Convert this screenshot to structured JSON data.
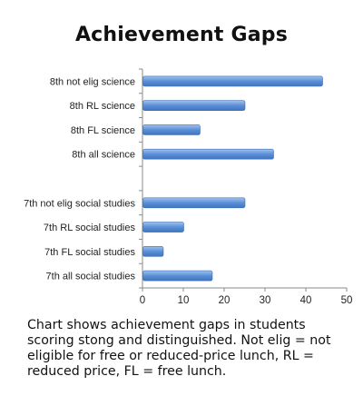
{
  "chart_data": {
    "type": "bar",
    "orientation": "horizontal",
    "title": "Achievement Gaps",
    "xlabel": "",
    "ylabel": "",
    "xlim": [
      0,
      50
    ],
    "xticks": [
      0,
      10,
      20,
      30,
      40,
      50
    ],
    "grid": false,
    "legend": "none",
    "bar_color": "#5b8fd6",
    "categories": [
      "8th not elig science",
      "8th RL science",
      "8th FL science",
      "8th all science",
      "",
      "7th not elig social studies",
      "7th RL social studies",
      "7th FL social studies",
      "7th all social studies"
    ],
    "values": [
      44,
      25,
      14,
      32,
      null,
      25,
      10,
      5,
      17
    ]
  },
  "caption": "Chart shows achievement gaps in students scoring stong and distinguished. Not elig = not eligible for free or reduced-price lunch, RL = reduced price, FL = free lunch."
}
